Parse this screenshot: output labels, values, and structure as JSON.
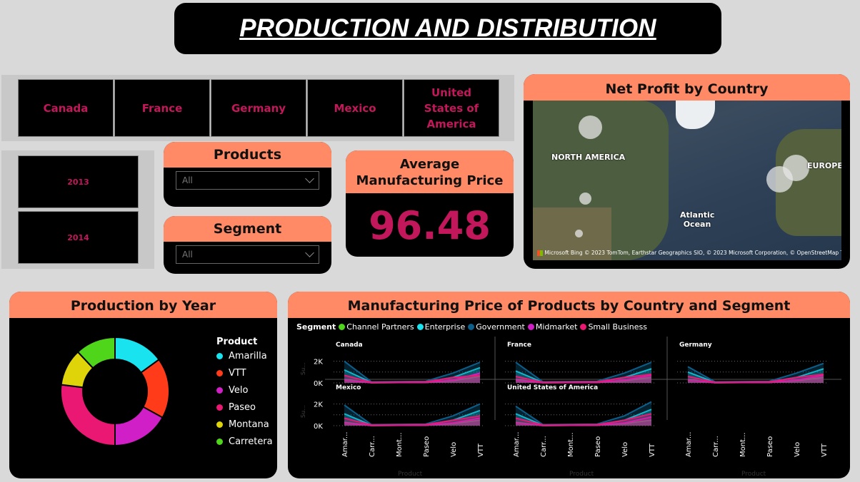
{
  "title": "PRODUCTION AND DISTRIBUTION",
  "countries": [
    "Canada",
    "France",
    "Germany",
    "Mexico",
    "United States of America"
  ],
  "years": [
    "2013",
    "2014"
  ],
  "products_slicer": {
    "title": "Products",
    "value": "All"
  },
  "segment_slicer": {
    "title": "Segment",
    "value": "All"
  },
  "kpi": {
    "title": "Average Manufacturing Price",
    "value": "96.48"
  },
  "map": {
    "title": "Net Profit by Country",
    "labels": [
      "NORTH AMERICA",
      "EUROPE",
      "Atlantic Ocean"
    ],
    "logo": "Microsoft Bing",
    "attribution": "© 2023 TomTom, Earthstar Geographics SIO, © 2023 Microsoft Corporation, © OpenStreetMap  Terms"
  },
  "donut": {
    "title": "Production by Year",
    "legend_title": "Product",
    "colors": [
      "#19e3ef",
      "#ff3b1a",
      "#d11fc7",
      "#ea1873",
      "#dfd30a",
      "#4fd61a"
    ]
  },
  "small_multiples": {
    "title": "Manufacturing Price of Products by Country and Segment",
    "legend_title": "Segment",
    "panels": [
      "Canada",
      "France",
      "Germany",
      "Mexico",
      "United States of America"
    ],
    "y_ticks": [
      "2K",
      "0K"
    ],
    "x_axis_title": "Product",
    "y_axis_title": "Su..."
  },
  "chart_data": [
    {
      "type": "pie",
      "title": "Production by Year",
      "categories": [
        "Amarilla",
        "VTT",
        "Velo",
        "Paseo",
        "Montana",
        "Carretera"
      ],
      "values": [
        15,
        18,
        17,
        27,
        11,
        12
      ]
    },
    {
      "type": "line",
      "title": "Manufacturing Price of Products by Country and Segment",
      "categories": [
        "Amarilla",
        "Carretera",
        "Montana",
        "Paseo",
        "Velo",
        "VTT"
      ],
      "series_names": [
        "Channel Partners",
        "Enterprise",
        "Government",
        "Midmarket",
        "Small Business"
      ],
      "series_colors": [
        "#4fd61a",
        "#19e3ef",
        "#0b5f8a",
        "#d11fc7",
        "#ea1873"
      ],
      "panels": [
        {
          "name": "Canada",
          "series": [
            {
              "name": "Channel Partners",
              "values": [
                300,
                20,
                30,
                40,
                200,
                600
              ]
            },
            {
              "name": "Enterprise",
              "values": [
                1200,
                50,
                60,
                80,
                500,
                1400
              ]
            },
            {
              "name": "Government",
              "values": [
                2000,
                100,
                120,
                150,
                900,
                1900
              ]
            },
            {
              "name": "Midmarket",
              "values": [
                250,
                20,
                30,
                40,
                250,
                900
              ]
            },
            {
              "name": "Small Business",
              "values": [
                700,
                60,
                70,
                100,
                500,
                700
              ]
            }
          ]
        },
        {
          "name": "France",
          "series": [
            {
              "name": "Channel Partners",
              "values": [
                300,
                20,
                30,
                40,
                200,
                500
              ]
            },
            {
              "name": "Enterprise",
              "values": [
                1100,
                50,
                60,
                80,
                500,
                1300
              ]
            },
            {
              "name": "Government",
              "values": [
                1900,
                100,
                120,
                150,
                900,
                1900
              ]
            },
            {
              "name": "Midmarket",
              "values": [
                250,
                20,
                30,
                40,
                250,
                700
              ]
            },
            {
              "name": "Small Business",
              "values": [
                600,
                60,
                70,
                100,
                500,
                800
              ]
            }
          ]
        },
        {
          "name": "Germany",
          "series": [
            {
              "name": "Channel Partners",
              "values": [
                300,
                20,
                30,
                40,
                200,
                500
              ]
            },
            {
              "name": "Enterprise",
              "values": [
                1000,
                50,
                60,
                80,
                500,
                1300
              ]
            },
            {
              "name": "Government",
              "values": [
                1500,
                100,
                120,
                150,
                900,
                1800
              ]
            },
            {
              "name": "Midmarket",
              "values": [
                250,
                20,
                30,
                40,
                250,
                700
              ]
            },
            {
              "name": "Small Business",
              "values": [
                600,
                60,
                70,
                100,
                500,
                800
              ]
            }
          ]
        },
        {
          "name": "Mexico",
          "series": [
            {
              "name": "Channel Partners",
              "values": [
                300,
                20,
                30,
                40,
                200,
                500
              ]
            },
            {
              "name": "Enterprise",
              "values": [
                1100,
                50,
                60,
                80,
                500,
                1400
              ]
            },
            {
              "name": "Government",
              "values": [
                1900,
                100,
                120,
                150,
                900,
                2000
              ]
            },
            {
              "name": "Midmarket",
              "values": [
                250,
                20,
                30,
                40,
                250,
                700
              ]
            },
            {
              "name": "Small Business",
              "values": [
                700,
                60,
                70,
                100,
                500,
                900
              ]
            }
          ]
        },
        {
          "name": "United States of America",
          "series": [
            {
              "name": "Channel Partners",
              "values": [
                300,
                20,
                30,
                40,
                200,
                500
              ]
            },
            {
              "name": "Enterprise",
              "values": [
                1100,
                50,
                60,
                80,
                500,
                1500
              ]
            },
            {
              "name": "Government",
              "values": [
                1800,
                100,
                120,
                150,
                900,
                2200
              ]
            },
            {
              "name": "Midmarket",
              "values": [
                250,
                20,
                30,
                40,
                250,
                800
              ]
            },
            {
              "name": "Small Business",
              "values": [
                700,
                60,
                70,
                100,
                500,
                1100
              ]
            }
          ]
        }
      ]
    }
  ]
}
